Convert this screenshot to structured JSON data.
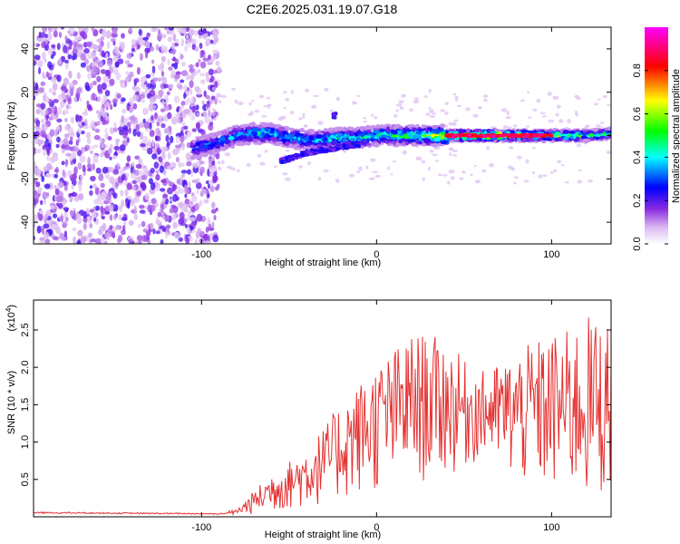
{
  "chart_data": [
    {
      "type": "heatmap",
      "title": "C2E6.2025.031.19.07.G18",
      "xlabel": "Height of straight line (km)",
      "ylabel": "Frequency (Hz)",
      "xlim": [
        -196,
        134
      ],
      "ylim": [
        -50,
        50
      ],
      "x_ticks": [
        -100,
        0,
        100
      ],
      "y_ticks": [
        -40,
        -20,
        0,
        20,
        40
      ],
      "colorbar": {
        "label": "Normalized spectral amplitude",
        "range": [
          0,
          1
        ],
        "ticks": [
          0.0,
          0.2,
          0.4,
          0.6,
          0.8
        ],
        "colors": [
          "#ffffff",
          "#8a2be2",
          "#0000ff",
          "#00ffff",
          "#00ff00",
          "#ffff00",
          "#ff0000",
          "#ff00ff"
        ]
      },
      "noise_region_x": [
        -196,
        -90
      ],
      "ridge": [
        {
          "x": -105,
          "y": -6,
          "amp": 0.35
        },
        {
          "x": -90,
          "y": -3,
          "amp": 0.4
        },
        {
          "x": -80,
          "y": 0,
          "amp": 0.4
        },
        {
          "x": -70,
          "y": 1,
          "amp": 0.45
        },
        {
          "x": -60,
          "y": 1,
          "amp": 0.45
        },
        {
          "x": -50,
          "y": -1,
          "amp": 0.45
        },
        {
          "x": -40,
          "y": -2,
          "amp": 0.45
        },
        {
          "x": -30,
          "y": -2,
          "amp": 0.45
        },
        {
          "x": -20,
          "y": -1,
          "amp": 0.5
        },
        {
          "x": -10,
          "y": -1,
          "amp": 0.5
        },
        {
          "x": 0,
          "y": 0,
          "amp": 0.5
        },
        {
          "x": 10,
          "y": 0,
          "amp": 0.55
        },
        {
          "x": 20,
          "y": 0,
          "amp": 0.55
        },
        {
          "x": 30,
          "y": 0,
          "amp": 0.6
        },
        {
          "x": 40,
          "y": 0,
          "amp": 0.75
        },
        {
          "x": 50,
          "y": 0,
          "amp": 0.9
        },
        {
          "x": 60,
          "y": 0,
          "amp": 0.95
        },
        {
          "x": 70,
          "y": 0,
          "amp": 0.9
        },
        {
          "x": 80,
          "y": 0,
          "amp": 0.8
        },
        {
          "x": 90,
          "y": 0,
          "amp": 0.7
        },
        {
          "x": 100,
          "y": 0,
          "amp": 0.65
        },
        {
          "x": 110,
          "y": 0,
          "amp": 0.6
        },
        {
          "x": 120,
          "y": 0,
          "amp": 0.55
        },
        {
          "x": 134,
          "y": 1,
          "amp": 0.5
        }
      ],
      "lower_branch": [
        {
          "x": -55,
          "y": -12
        },
        {
          "x": -40,
          "y": -8
        },
        {
          "x": -25,
          "y": -6
        },
        {
          "x": -10,
          "y": -4
        }
      ],
      "blob": {
        "x": -24,
        "y": 9
      }
    },
    {
      "type": "line",
      "xlabel": "Height of straight line (km)",
      "ylabel": "SNR (10 * v/v)",
      "y_multiplier": "(x10^4)",
      "xlim": [
        -196,
        134
      ],
      "ylim": [
        0,
        2.9
      ],
      "x_ticks": [
        -100,
        0,
        100
      ],
      "y_ticks": [
        0.5,
        1.0,
        1.5,
        2.0,
        2.5
      ],
      "series": [
        {
          "color": "#e63232",
          "envelope": [
            {
              "x": -196,
              "lo": 0.03,
              "hi": 0.08
            },
            {
              "x": -90,
              "lo": 0.02,
              "hi": 0.06
            },
            {
              "x": -80,
              "lo": 0.02,
              "hi": 0.1
            },
            {
              "x": -70,
              "lo": 0.03,
              "hi": 0.35
            },
            {
              "x": -60,
              "lo": 0.05,
              "hi": 0.6
            },
            {
              "x": -50,
              "lo": 0.08,
              "hi": 0.75
            },
            {
              "x": -40,
              "lo": 0.1,
              "hi": 0.95
            },
            {
              "x": -30,
              "lo": 0.15,
              "hi": 1.2
            },
            {
              "x": -20,
              "lo": 0.2,
              "hi": 1.55
            },
            {
              "x": -10,
              "lo": 0.25,
              "hi": 1.8
            },
            {
              "x": 0,
              "lo": 0.3,
              "hi": 2.05
            },
            {
              "x": 10,
              "lo": 0.35,
              "hi": 2.25
            },
            {
              "x": 20,
              "lo": 0.4,
              "hi": 2.45
            },
            {
              "x": 30,
              "lo": 0.45,
              "hi": 2.45
            },
            {
              "x": 40,
              "lo": 0.5,
              "hi": 2.35
            },
            {
              "x": 50,
              "lo": 0.6,
              "hi": 2.1
            },
            {
              "x": 60,
              "lo": 0.75,
              "hi": 1.95
            },
            {
              "x": 70,
              "lo": 0.6,
              "hi": 2.05
            },
            {
              "x": 80,
              "lo": 0.4,
              "hi": 2.2
            },
            {
              "x": 90,
              "lo": 0.3,
              "hi": 2.35
            },
            {
              "x": 100,
              "lo": 0.25,
              "hi": 2.45
            },
            {
              "x": 110,
              "lo": 0.2,
              "hi": 2.5
            },
            {
              "x": 120,
              "lo": 0.15,
              "hi": 2.7
            },
            {
              "x": 134,
              "lo": 0.2,
              "hi": 2.6
            }
          ]
        }
      ]
    }
  ]
}
